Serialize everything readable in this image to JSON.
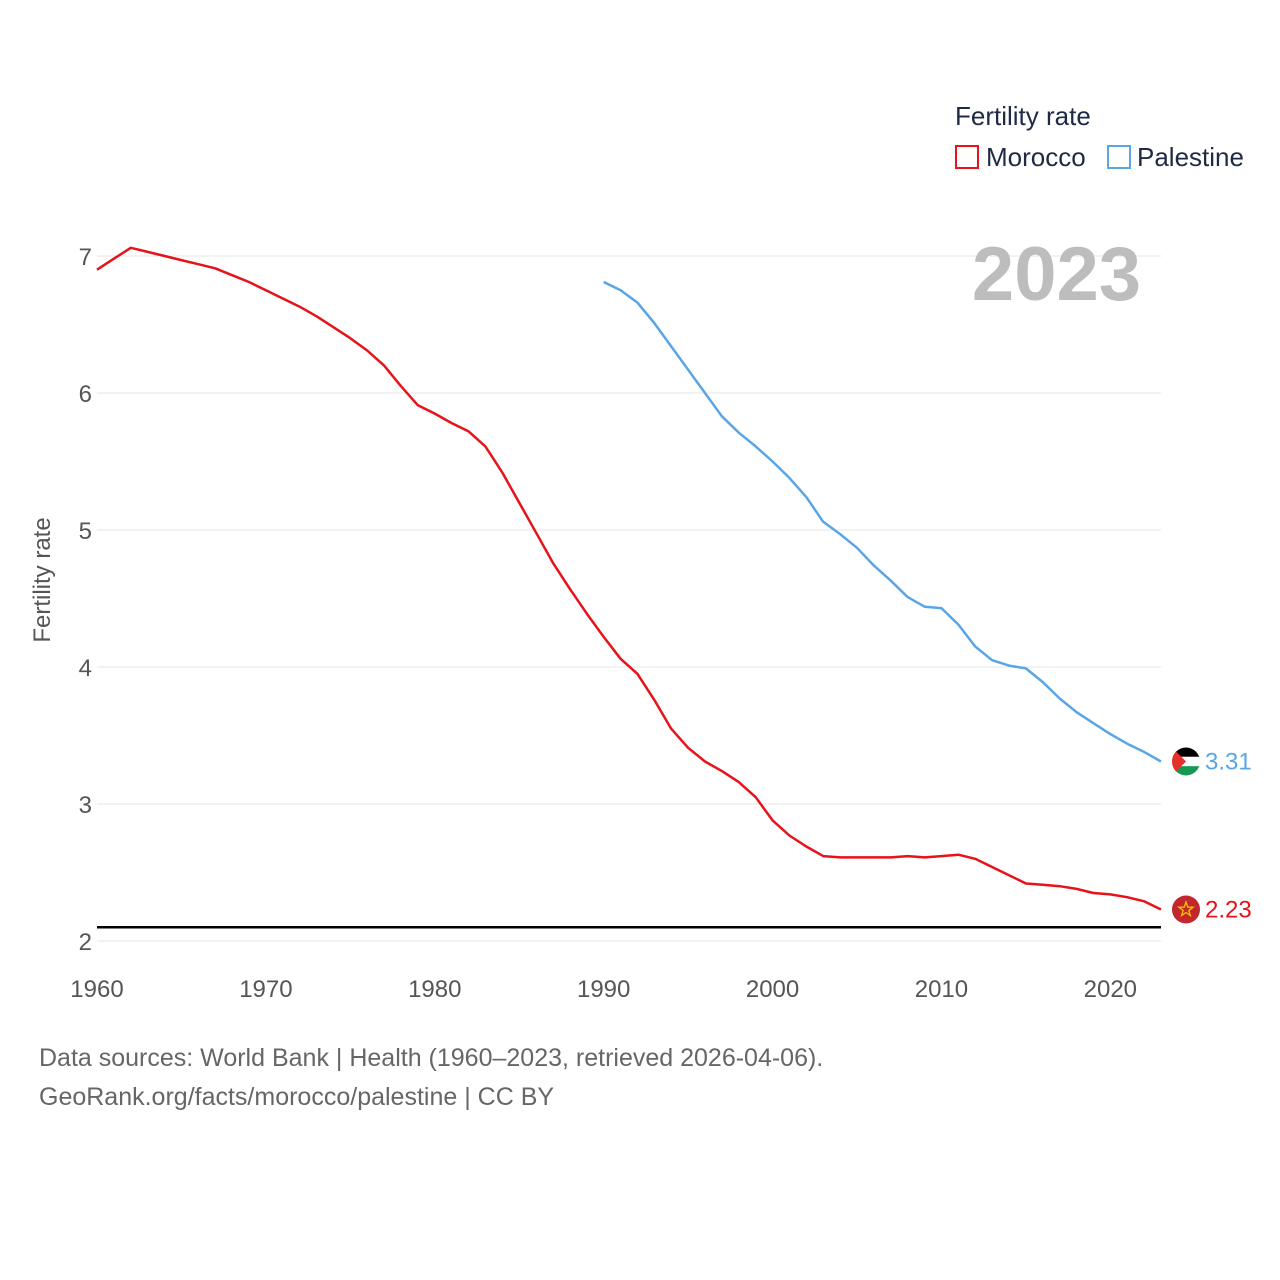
{
  "chart_data": {
    "type": "line",
    "legend_title": "Fertility rate",
    "ylabel": "Fertility rate",
    "year_label": "2023",
    "xlim": [
      1960,
      2023
    ],
    "ylim": [
      2,
      7
    ],
    "x_ticks": [
      1960,
      1970,
      1980,
      1990,
      2000,
      2010,
      2020
    ],
    "x_tick_labels": [
      "1960",
      "1970",
      "1980",
      "1990",
      "2000",
      "2010",
      "2020"
    ],
    "y_ticks": [
      2,
      3,
      4,
      5,
      6,
      7
    ],
    "y_tick_labels": [
      "2",
      "3",
      "4",
      "5",
      "6",
      "7"
    ],
    "reference_line": 2.1,
    "series": [
      {
        "name": "Morocco",
        "color": "#e8121a",
        "end_label": "2.23",
        "x": [
          1960,
          1961,
          1962,
          1963,
          1964,
          1965,
          1966,
          1967,
          1968,
          1969,
          1970,
          1971,
          1972,
          1973,
          1974,
          1975,
          1976,
          1977,
          1978,
          1979,
          1980,
          1981,
          1982,
          1983,
          1984,
          1985,
          1986,
          1987,
          1988,
          1989,
          1990,
          1991,
          1992,
          1993,
          1994,
          1995,
          1996,
          1997,
          1998,
          1999,
          2000,
          2001,
          2002,
          2003,
          2004,
          2005,
          2006,
          2007,
          2008,
          2009,
          2010,
          2011,
          2012,
          2013,
          2014,
          2015,
          2016,
          2017,
          2018,
          2019,
          2020,
          2021,
          2022,
          2023
        ],
        "values": [
          6.9,
          6.98,
          7.06,
          7.03,
          7.0,
          6.97,
          6.94,
          6.91,
          6.86,
          6.81,
          6.75,
          6.69,
          6.63,
          6.56,
          6.48,
          6.4,
          6.31,
          6.2,
          6.05,
          5.91,
          5.85,
          5.78,
          5.72,
          5.61,
          5.42,
          5.2,
          4.98,
          4.76,
          4.57,
          4.39,
          4.22,
          4.06,
          3.95,
          3.76,
          3.55,
          3.41,
          3.31,
          3.24,
          3.16,
          3.05,
          2.88,
          2.77,
          2.69,
          2.62,
          2.61,
          2.61,
          2.61,
          2.61,
          2.62,
          2.61,
          2.62,
          2.63,
          2.6,
          2.54,
          2.48,
          2.42,
          2.41,
          2.4,
          2.38,
          2.35,
          2.34,
          2.32,
          2.29,
          2.23
        ]
      },
      {
        "name": "Palestine",
        "color": "#5aa5e6",
        "end_label": "3.31",
        "x": [
          1990,
          1991,
          1992,
          1993,
          1994,
          1995,
          1996,
          1997,
          1998,
          1999,
          2000,
          2001,
          2002,
          2003,
          2004,
          2005,
          2006,
          2007,
          2008,
          2009,
          2010,
          2011,
          2012,
          2013,
          2014,
          2015,
          2016,
          2017,
          2018,
          2019,
          2020,
          2021,
          2022,
          2023
        ],
        "values": [
          6.81,
          6.75,
          6.66,
          6.51,
          6.34,
          6.17,
          6.0,
          5.83,
          5.71,
          5.61,
          5.5,
          5.38,
          5.24,
          5.06,
          4.97,
          4.87,
          4.74,
          4.63,
          4.51,
          4.44,
          4.43,
          4.31,
          4.15,
          4.05,
          4.01,
          3.99,
          3.89,
          3.77,
          3.67,
          3.59,
          3.51,
          3.44,
          3.38,
          3.31
        ]
      }
    ]
  },
  "footer": {
    "line1": "Data sources: World Bank | Health (1960–2023, retrieved 2026-04-06).",
    "line2": "GeoRank.org/facts/morocco/palestine | CC BY"
  }
}
